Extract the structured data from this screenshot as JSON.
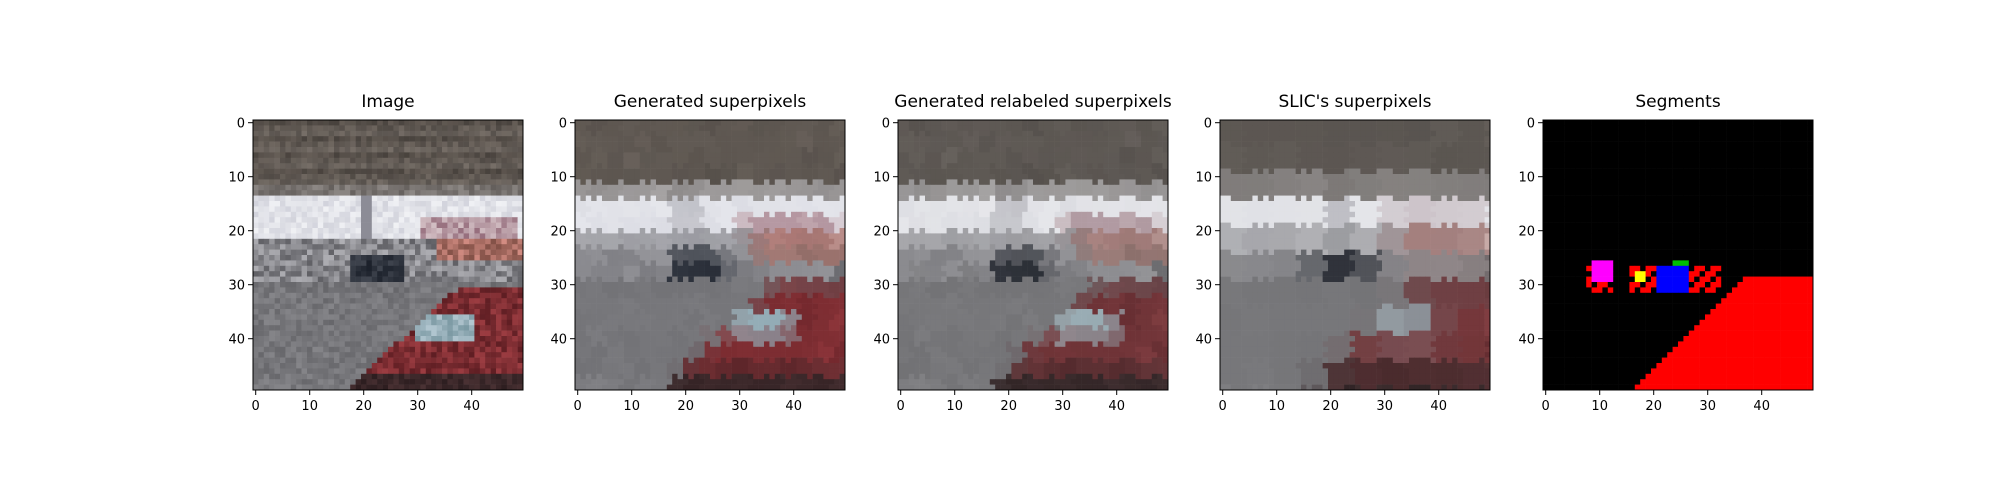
{
  "chart_data": [
    {
      "type": "image",
      "title": "Image",
      "xticks": [
        0,
        10,
        20,
        30,
        40
      ],
      "yticks": [
        0,
        10,
        20,
        30,
        40
      ],
      "xlim": [
        0,
        50
      ],
      "ylim": [
        50,
        0
      ],
      "content": "photo-pixelated"
    },
    {
      "type": "image",
      "title": "Generated superpixels",
      "xticks": [
        0,
        10,
        20,
        30,
        40
      ],
      "yticks": [
        0,
        10,
        20,
        30,
        40
      ],
      "xlim": [
        0,
        50
      ],
      "ylim": [
        50,
        0
      ],
      "content": "superpixels"
    },
    {
      "type": "image",
      "title": "Generated relabeled superpixels",
      "xticks": [
        0,
        10,
        20,
        30,
        40
      ],
      "yticks": [
        0,
        10,
        20,
        30,
        40
      ],
      "xlim": [
        0,
        50
      ],
      "ylim": [
        50,
        0
      ],
      "content": "superpixels-relabeled"
    },
    {
      "type": "image",
      "title": "SLIC's superpixels",
      "xticks": [
        0,
        10,
        20,
        30,
        40
      ],
      "yticks": [
        0,
        10,
        20,
        30,
        40
      ],
      "xlim": [
        0,
        50
      ],
      "ylim": [
        50,
        0
      ],
      "content": "slic"
    },
    {
      "type": "image",
      "title": "Segments",
      "xticks": [
        0,
        10,
        20,
        30,
        40
      ],
      "yticks": [
        0,
        10,
        20,
        30,
        40
      ],
      "xlim": [
        0,
        50
      ],
      "ylim": [
        50,
        0
      ],
      "content": "segments",
      "colors": {
        "background": "#000000",
        "red": "#ff0000",
        "blue": "#0000ff",
        "magenta": "#ff00ff",
        "yellow": "#ffff00",
        "green": "#00c000"
      }
    }
  ]
}
